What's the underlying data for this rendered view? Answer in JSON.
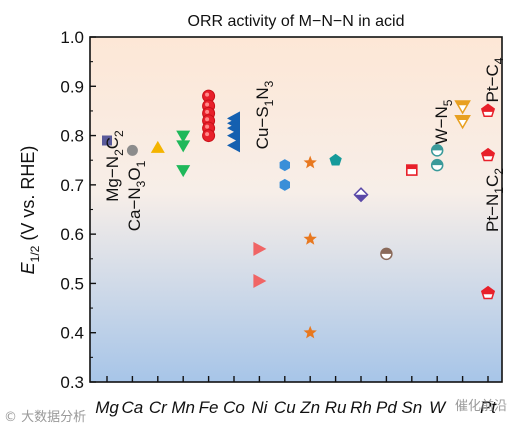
{
  "chart_data": {
    "type": "scatter",
    "title": "ORR activity of M−N−N in acid",
    "ylabel_main": "E",
    "ylabel_sub": "1/2",
    "ylabel_rest": " (V vs. RHE)",
    "ylim": [
      0.3,
      1.0
    ],
    "yticks": [
      "0.3",
      "0.4",
      "0.5",
      "0.6",
      "0.7",
      "0.8",
      "0.9",
      "1.0"
    ],
    "ytick_values": [
      0.3,
      0.4,
      0.5,
      0.6,
      0.7,
      0.8,
      0.9,
      1.0
    ],
    "categories": [
      "Mg",
      "Ca",
      "Cr",
      "Mn",
      "Fe",
      "Co",
      "Ni",
      "Cu",
      "Zn",
      "Ru",
      "Rh",
      "Pd",
      "Sn",
      "W",
      "",
      "Pt"
    ],
    "background": {
      "top": "#fde7d6",
      "bottom": "#a7c5e8"
    },
    "points": [
      {
        "cat": 0,
        "y": 0.79,
        "shape": "square",
        "color": "#5a5a9a"
      },
      {
        "cat": 1,
        "y": 0.77,
        "shape": "circle",
        "color": "#8c8c8c"
      },
      {
        "cat": 2,
        "y": 0.775,
        "shape": "triangle-up",
        "color": "#f4b400"
      },
      {
        "cat": 3,
        "y": 0.8,
        "shape": "triangle-down",
        "color": "#1fb85a"
      },
      {
        "cat": 3,
        "y": 0.78,
        "shape": "triangle-down",
        "color": "#1fb85a"
      },
      {
        "cat": 3,
        "y": 0.73,
        "shape": "triangle-down",
        "color": "#1fb85a"
      },
      {
        "cat": 4,
        "y": 0.88,
        "shape": "circle-ring",
        "color": "#e8202a"
      },
      {
        "cat": 4,
        "y": 0.86,
        "shape": "circle-ring",
        "color": "#e8202a"
      },
      {
        "cat": 4,
        "y": 0.845,
        "shape": "circle-ring",
        "color": "#e8202a"
      },
      {
        "cat": 4,
        "y": 0.83,
        "shape": "circle-ring",
        "color": "#e8202a"
      },
      {
        "cat": 4,
        "y": 0.815,
        "shape": "circle-ring",
        "color": "#e8202a"
      },
      {
        "cat": 4,
        "y": 0.8,
        "shape": "circle-ring",
        "color": "#e8202a"
      },
      {
        "cat": 5,
        "y": 0.835,
        "shape": "triangle-left",
        "color": "#1560b0"
      },
      {
        "cat": 5,
        "y": 0.825,
        "shape": "triangle-left",
        "color": "#1560b0"
      },
      {
        "cat": 5,
        "y": 0.815,
        "shape": "triangle-left",
        "color": "#1560b0"
      },
      {
        "cat": 5,
        "y": 0.8,
        "shape": "triangle-left",
        "color": "#1560b0"
      },
      {
        "cat": 5,
        "y": 0.78,
        "shape": "triangle-left",
        "color": "#1560b0"
      },
      {
        "cat": 6,
        "y": 0.57,
        "shape": "triangle-right",
        "color": "#f06565"
      },
      {
        "cat": 6,
        "y": 0.505,
        "shape": "triangle-right",
        "color": "#f06565"
      },
      {
        "cat": 7,
        "y": 0.74,
        "shape": "hexagon",
        "color": "#3a8fd8"
      },
      {
        "cat": 7,
        "y": 0.7,
        "shape": "hexagon",
        "color": "#3a8fd8"
      },
      {
        "cat": 8,
        "y": 0.745,
        "shape": "star",
        "color": "#e8781f"
      },
      {
        "cat": 8,
        "y": 0.59,
        "shape": "star",
        "color": "#e8781f"
      },
      {
        "cat": 8,
        "y": 0.4,
        "shape": "star",
        "color": "#e8781f"
      },
      {
        "cat": 9,
        "y": 0.75,
        "shape": "pentagon",
        "color": "#159a9a"
      },
      {
        "cat": 10,
        "y": 0.68,
        "shape": "diamond-half",
        "color": "#5a48a8"
      },
      {
        "cat": 11,
        "y": 0.56,
        "shape": "circle-half",
        "color": "#8a6a5a"
      },
      {
        "cat": 12,
        "y": 0.73,
        "shape": "square-open",
        "color": "#e8202a"
      },
      {
        "cat": 13,
        "y": 0.77,
        "shape": "circle-half-top",
        "color": "#3a9a9a"
      },
      {
        "cat": 13,
        "y": 0.74,
        "shape": "circle-half-top",
        "color": "#3a9a9a"
      },
      {
        "cat": 14,
        "y": 0.86,
        "shape": "triangle-down-half",
        "color": "#e8a020"
      },
      {
        "cat": 14,
        "y": 0.83,
        "shape": "triangle-down-half",
        "color": "#e8a020"
      },
      {
        "cat": 15,
        "y": 0.85,
        "shape": "pentagon-half",
        "color": "#e8202a"
      },
      {
        "cat": 15,
        "y": 0.76,
        "shape": "pentagon-half",
        "color": "#e8202a"
      },
      {
        "cat": 15,
        "y": 0.48,
        "shape": "pentagon-half",
        "color": "#e8202a"
      }
    ],
    "annotations": [
      {
        "id": "mg",
        "parts": [
          [
            "Mg−N",
            false
          ],
          [
            "2",
            true
          ],
          [
            "C",
            false
          ],
          [
            "2",
            true
          ]
        ]
      },
      {
        "id": "ca",
        "parts": [
          [
            "Ca−N",
            false
          ],
          [
            "3",
            true
          ],
          [
            "O",
            false
          ],
          [
            "1",
            true
          ]
        ]
      },
      {
        "id": "cu",
        "parts": [
          [
            "Cu−S",
            false
          ],
          [
            "1",
            true
          ],
          [
            "N",
            false
          ],
          [
            "3",
            true
          ]
        ]
      },
      {
        "id": "w",
        "parts": [
          [
            "W−N",
            false
          ],
          [
            "5",
            true
          ]
        ]
      },
      {
        "id": "ptc",
        "parts": [
          [
            "Pt−C",
            false
          ],
          [
            "4",
            true
          ]
        ]
      },
      {
        "id": "ptn",
        "parts": [
          [
            "Pt−N",
            false
          ],
          [
            "1",
            true
          ],
          [
            "C",
            false
          ],
          [
            "2",
            true
          ]
        ]
      }
    ]
  },
  "watermark": {
    "left": "© 大数据分析",
    "right": "催化前沿"
  }
}
